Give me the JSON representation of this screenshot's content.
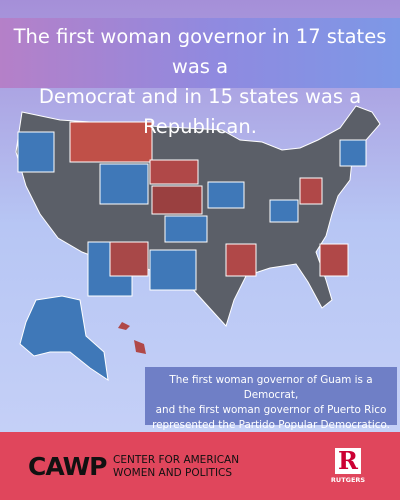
{
  "header": {
    "title_lines": [
      "The first woman governor in 17 states was a",
      "Democrat and in 15 states was a Republican."
    ]
  },
  "note": {
    "lines": [
      "The first woman governor of Guam is a Democrat,",
      "and the first woman governor of Puerto Rico",
      "represented the Partido Popular Democratico."
    ]
  },
  "footer": {
    "logo": "CAWP",
    "org_lines": [
      "CENTER FOR AMERICAN",
      "WOMEN AND POLITICS"
    ],
    "university_mark": "R",
    "university": "RUTGERS"
  }
}
